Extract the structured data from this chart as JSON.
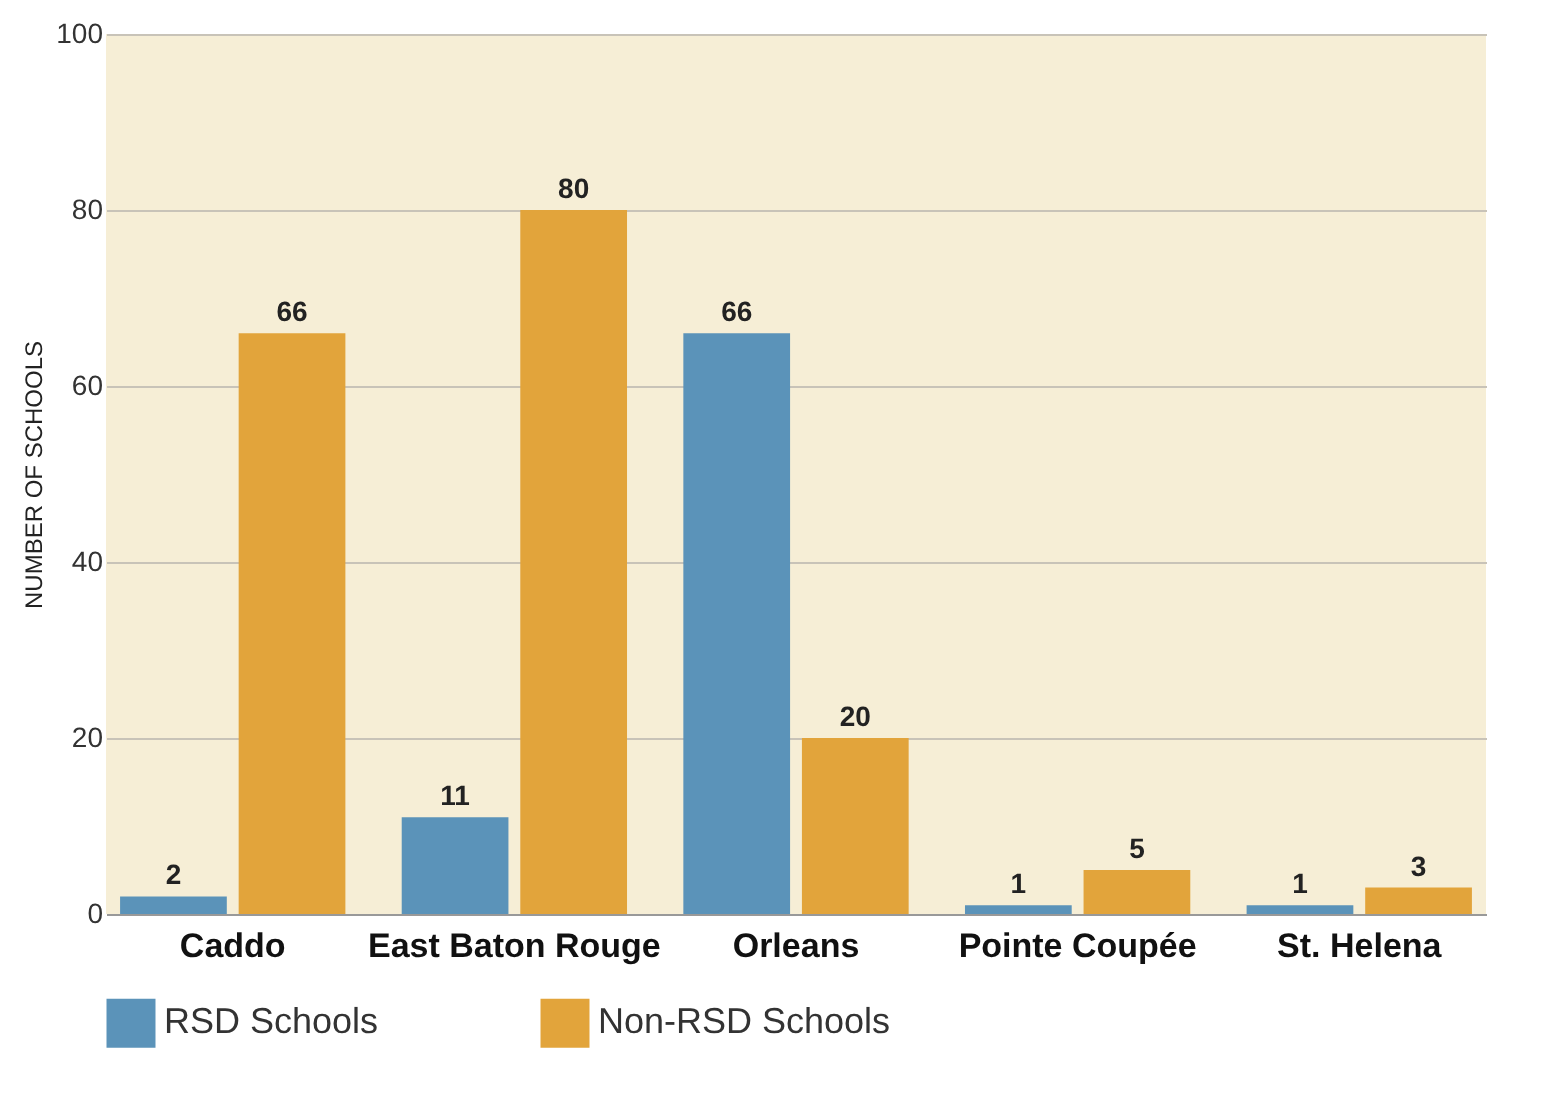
{
  "chart_data": {
    "type": "bar",
    "ylabel": "NUMBER OF SCHOOLS",
    "categories": [
      "Caddo",
      "East Baton Rouge",
      "Orleans",
      "Pointe Coupée",
      "St. Helena"
    ],
    "series": [
      {
        "name": "RSD Schools",
        "color": "#5b93b9",
        "values": [
          2,
          11,
          66,
          1,
          1
        ]
      },
      {
        "name": "Non-RSD Schools",
        "color": "#e2a43b",
        "values": [
          66,
          80,
          20,
          5,
          3
        ]
      }
    ],
    "ylim": [
      0,
      100
    ],
    "yticks": [
      0,
      20,
      40,
      60,
      80,
      100
    ],
    "grid": "y",
    "legend": "bottom left",
    "data_labels": true
  }
}
